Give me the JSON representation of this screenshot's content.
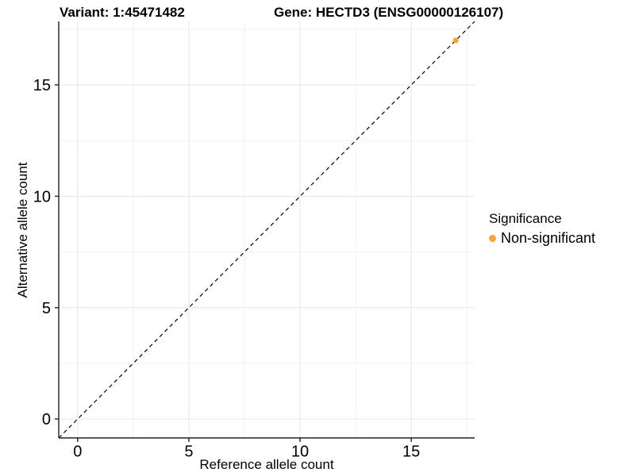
{
  "chart_data": {
    "type": "scatter",
    "titles": {
      "left": "Variant: 1:45471482",
      "right": "Gene: HECTD3 (ENSG00000126107)"
    },
    "xlabel": "Reference allele count",
    "ylabel": "Alternative allele count",
    "xlim": [
      -0.85,
      17.85
    ],
    "ylim": [
      -0.85,
      17.85
    ],
    "x_major_ticks": [
      0,
      5,
      10,
      15
    ],
    "y_major_ticks": [
      0,
      5,
      10,
      15
    ],
    "x_minor_ticks": [
      2.5,
      7.5,
      12.5,
      17.5
    ],
    "y_minor_ticks": [
      2.5,
      7.5,
      12.5,
      17.5
    ],
    "grid": "major+minor, light gray on white panel",
    "reference_line": {
      "equation": "y = x",
      "style": "dashed",
      "color": "#000000",
      "from": [
        -0.85,
        -0.85
      ],
      "to": [
        17.85,
        17.85
      ]
    },
    "series": [
      {
        "name": "Non-significant",
        "marker": "circle",
        "color": "#FAA43A",
        "points": [
          {
            "x": 17,
            "y": 17
          }
        ]
      }
    ],
    "legend": {
      "title": "Significance",
      "position": "right",
      "items": [
        {
          "label": "Non-significant",
          "color": "#FAA43A"
        }
      ]
    }
  },
  "colors": {
    "background": "#ffffff",
    "axis_line": "#222222",
    "tick_mark": "#222222",
    "tick_label": "#000000",
    "grid_major": "#e6e6e6",
    "grid_minor": "#f2f2f2",
    "point": "#FAA43A",
    "identity_line": "#000000"
  }
}
